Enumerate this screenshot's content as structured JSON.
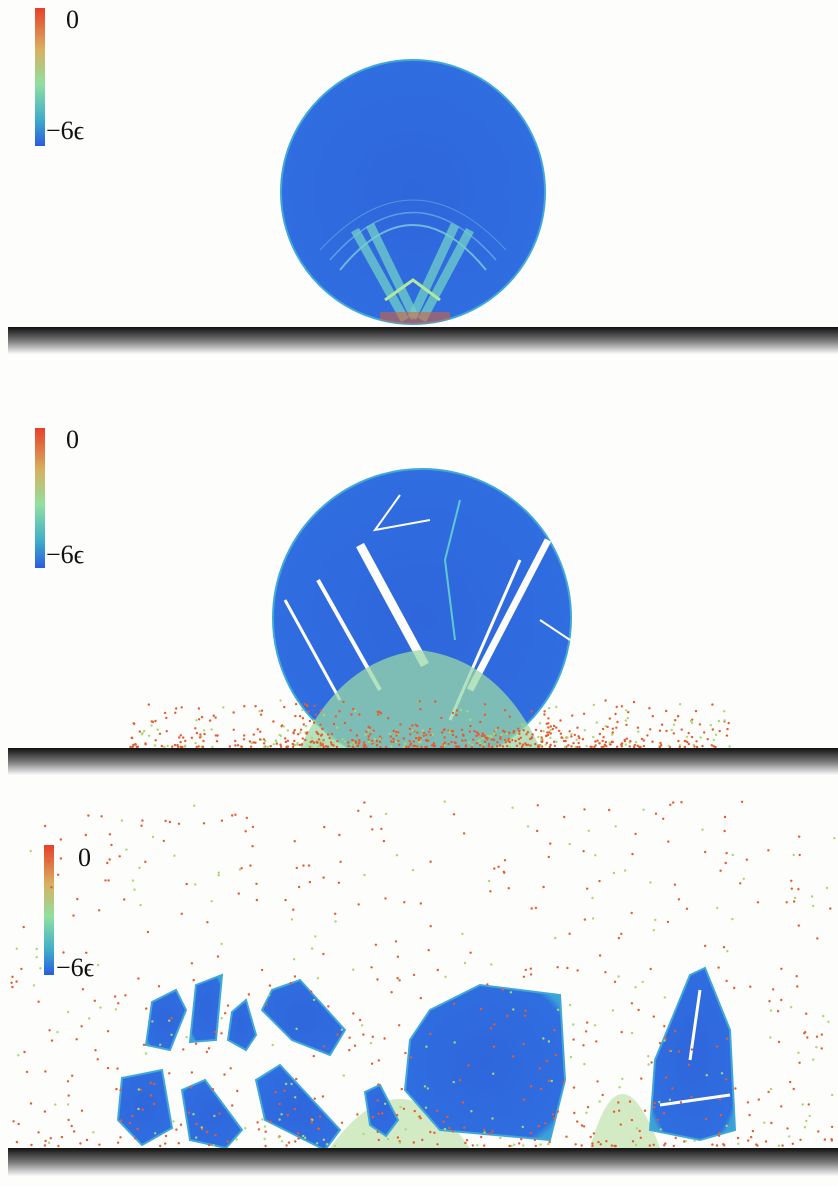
{
  "panels": [
    {
      "colorbar": {
        "max_label": "0",
        "min_label": "−6ϵ"
      }
    },
    {
      "colorbar": {
        "max_label": "0",
        "min_label": "−6ϵ"
      }
    },
    {
      "colorbar": {
        "max_label": "0",
        "min_label": "−6ϵ"
      }
    }
  ]
}
